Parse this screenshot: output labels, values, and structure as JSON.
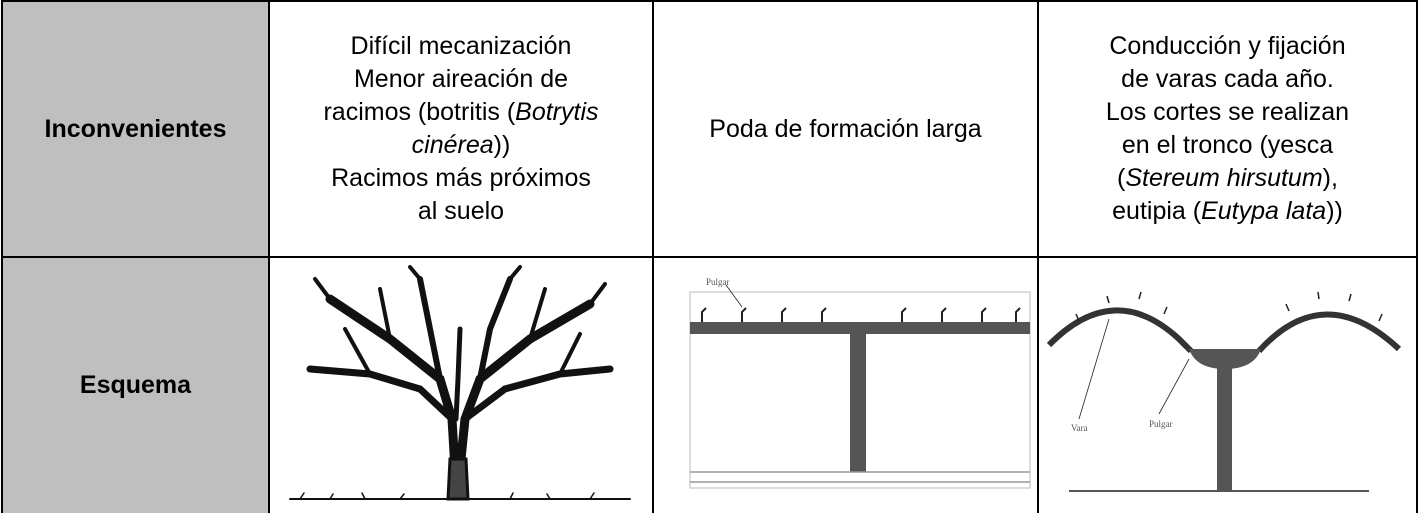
{
  "table": {
    "rows": [
      {
        "header": "Inconvenientes",
        "cells": [
          [
            [
              "Difícil mecanización"
            ],
            [
              "Menor aireación de"
            ],
            [
              "racimos (botritis (",
              "Botrytis"
            ],
            [
              "cinérea",
              "))"
            ],
            [
              "Racimos más próximos"
            ],
            [
              "al suelo"
            ]
          ],
          [
            [
              "Poda de formación larga"
            ]
          ],
          [
            [
              "Conducción y fijación"
            ],
            [
              "de varas cada año."
            ],
            [
              "Los cortes se realizan"
            ],
            [
              "en el tronco (yesca"
            ],
            [
              "(",
              "Stereum hirsutum",
              "),"
            ],
            [
              "eutipia (",
              "Eutypa lata",
              "))"
            ]
          ]
        ]
      },
      {
        "header": "Esquema",
        "cells": [
          {
            "labels": []
          },
          {
            "labels": [
              "Pulgar"
            ]
          },
          {
            "labels": [
              "Vara",
              "Pulgar"
            ]
          }
        ]
      }
    ]
  }
}
